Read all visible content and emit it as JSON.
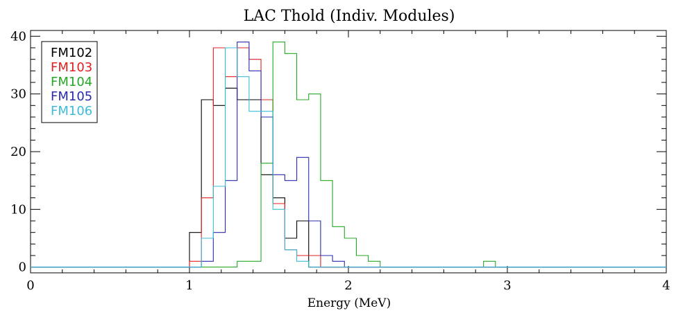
{
  "chart_data": {
    "type": "histogram",
    "title": "LAC Thold (Indiv. Modules)",
    "xlabel": "Energy (MeV)",
    "ylabel": "",
    "xlim": [
      0,
      4
    ],
    "ylim": [
      -1,
      41
    ],
    "x_ticks": [
      0,
      1,
      2,
      3,
      4
    ],
    "y_ticks": [
      0,
      10,
      20,
      30,
      40
    ],
    "x_tick_labels": [
      "0",
      "1",
      "2",
      "3",
      "4"
    ],
    "y_tick_labels": [
      "0",
      "10",
      "20",
      "30",
      "40"
    ],
    "bin_width": 0.075,
    "bin_start": 1.0,
    "legend": {
      "placement": "top-left",
      "boxed": true
    },
    "series": [
      {
        "name": "FM102",
        "color": "#000000",
        "values": [
          6,
          29,
          28,
          31,
          29,
          29,
          16,
          12,
          5,
          8,
          0,
          0,
          0,
          0,
          0,
          0,
          0,
          0
        ]
      },
      {
        "name": "FM103",
        "color": "#e02020",
        "values": [
          1,
          12,
          38,
          33,
          38,
          36,
          29,
          11,
          3,
          2,
          2,
          0,
          0,
          0,
          0,
          0,
          0,
          0
        ]
      },
      {
        "name": "FM104",
        "color": "#22a822",
        "values": [
          0,
          0,
          0,
          0,
          1,
          1,
          18,
          39,
          37,
          29,
          30,
          15,
          7,
          5,
          2,
          1,
          0,
          0
        ]
      },
      {
        "name": "FM105",
        "color": "#2a2ab0",
        "values": [
          0,
          1,
          6,
          15,
          39,
          34,
          26,
          16,
          15,
          19,
          8,
          2,
          1,
          0,
          0,
          0,
          0,
          0
        ]
      },
      {
        "name": "FM106",
        "color": "#3cbcd8",
        "values": [
          0,
          5,
          14,
          38,
          33,
          27,
          27,
          10,
          3,
          1,
          0,
          0,
          0,
          0,
          0,
          0,
          0,
          0
        ]
      }
    ],
    "extra_bins": [
      {
        "series": "FM104",
        "x": 2.85,
        "value": 1
      }
    ]
  }
}
